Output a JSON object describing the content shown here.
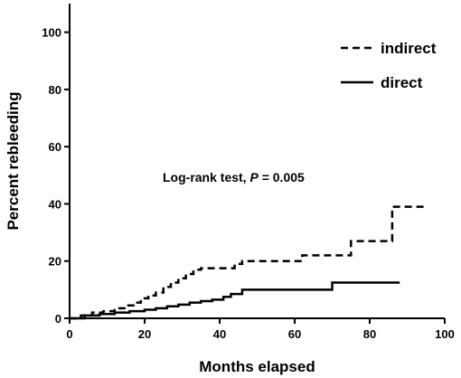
{
  "chart_data": {
    "type": "line",
    "step": true,
    "xlabel": "Months elapsed",
    "ylabel": "Percent rebleeding",
    "xlim": [
      0,
      100
    ],
    "ylim": [
      0,
      110
    ],
    "x_ticks": [
      0,
      20,
      40,
      60,
      80,
      100
    ],
    "y_ticks": [
      0,
      20,
      40,
      60,
      80,
      100
    ],
    "grid": false,
    "legend_position": "top-right",
    "annotation": {
      "prefix": "Log-rank test, ",
      "italic": "P",
      "suffix": " = 0.005"
    },
    "series": [
      {
        "name": "indirect",
        "style": "dashed",
        "color": "#000000",
        "x": [
          0,
          3,
          6,
          9,
          12,
          15,
          17,
          19,
          21,
          23,
          25,
          27,
          29,
          31,
          33,
          35,
          44,
          46,
          60,
          62,
          73,
          75,
          85,
          86,
          95
        ],
        "y": [
          0,
          1,
          2,
          2.5,
          3.5,
          4.5,
          5.5,
          7,
          8,
          9,
          11,
          12.5,
          14,
          15.5,
          17,
          17.5,
          19,
          20,
          20,
          22,
          22,
          27,
          27,
          39,
          39
        ]
      },
      {
        "name": "direct",
        "style": "solid",
        "color": "#000000",
        "x": [
          0,
          4,
          8,
          12,
          16,
          20,
          23,
          26,
          29,
          32,
          35,
          38,
          41,
          43,
          46,
          70,
          88
        ],
        "y": [
          0,
          1,
          1.5,
          2,
          2.5,
          3,
          3.5,
          4.2,
          4.8,
          5.5,
          6,
          6.5,
          7.5,
          8.5,
          10,
          12.5,
          12.5
        ]
      }
    ]
  }
}
